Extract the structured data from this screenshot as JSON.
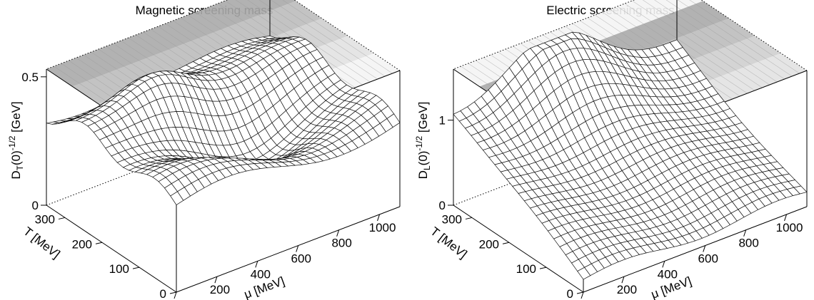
{
  "chart_data": [
    {
      "type": "surface",
      "title": "Magnetic screening mass",
      "xlabel": "μ [MeV]",
      "ylabel": "T [MeV]",
      "zlabel": "D_T(0)^-1/2 [GeV]",
      "z_label_parts": {
        "base": "D",
        "sub": "T",
        "paren": "(0)",
        "sup": "-1/2",
        "unit": " [GeV]"
      },
      "x_ticks": [
        "0",
        "200",
        "400",
        "600",
        "800",
        "1000"
      ],
      "y_ticks": [
        "0",
        "100",
        "200",
        "300"
      ],
      "z_ticks": [
        "0",
        "0.5"
      ],
      "xlim": [
        0,
        1100
      ],
      "ylim": [
        0,
        350
      ],
      "zlim": [
        0,
        0.53
      ],
      "surface_style": "hidden-line mesh with grey-shaded top-plane projection"
    },
    {
      "type": "surface",
      "title": "Electric screening mass",
      "xlabel": "μ [MeV]",
      "ylabel": "T [MeV]",
      "zlabel": "D_L(0)^-1/2 [GeV]",
      "z_label_parts": {
        "base": "D",
        "sub": "L",
        "paren": "(0)",
        "sup": "-1/2",
        "unit": " [GeV]"
      },
      "x_ticks": [
        "0",
        "200",
        "400",
        "600",
        "800",
        "1000"
      ],
      "y_ticks": [
        "0",
        "100",
        "200",
        "300"
      ],
      "z_ticks": [
        "0",
        "1"
      ],
      "xlim": [
        0,
        1100
      ],
      "ylim": [
        0,
        350
      ],
      "zlim": [
        0,
        1.6
      ],
      "surface_style": "hidden-line mesh with grey-shaded top-plane projection"
    }
  ]
}
